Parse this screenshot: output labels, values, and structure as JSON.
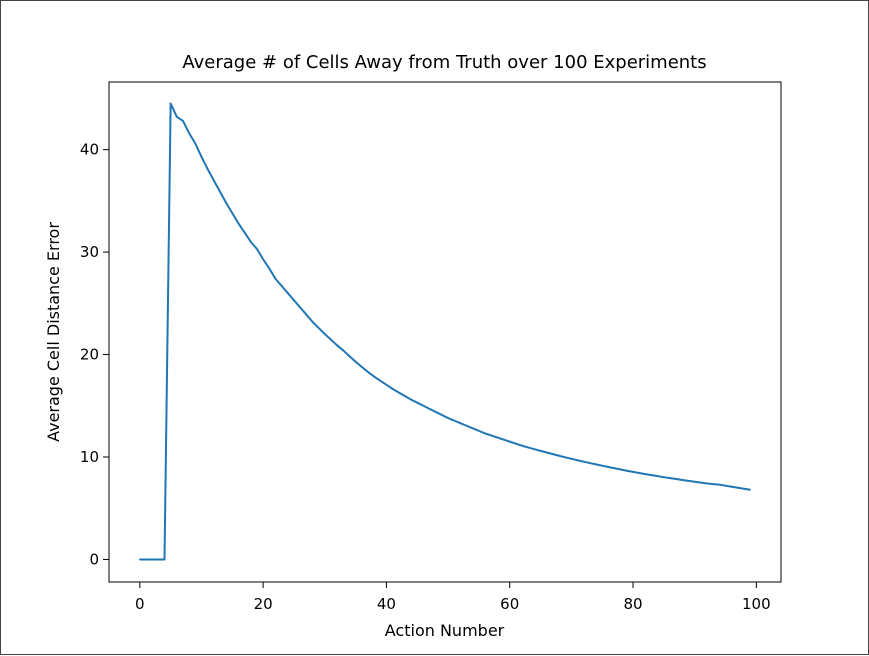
{
  "chart_data": {
    "type": "line",
    "title": "Average # of Cells Away from Truth over 100 Experiments",
    "xlabel": "Action Number",
    "ylabel": "Average Cell Distance Error",
    "xlim": [
      -5,
      104
    ],
    "ylim": [
      -2.2,
      46.6
    ],
    "xticks": [
      0,
      20,
      40,
      60,
      80,
      100
    ],
    "yticks": [
      0,
      10,
      20,
      30,
      40
    ],
    "grid": false,
    "series": [
      {
        "color": "#1f77b4",
        "x": [
          0,
          1,
          2,
          3,
          4,
          5,
          6,
          7,
          8,
          9,
          10,
          11,
          12,
          13,
          14,
          15,
          16,
          17,
          18,
          19,
          20,
          21,
          22,
          23,
          24,
          25,
          26,
          27,
          28,
          29,
          30,
          31,
          32,
          33,
          34,
          35,
          36,
          37,
          38,
          39,
          40,
          41,
          42,
          43,
          44,
          45,
          46,
          47,
          48,
          49,
          50,
          51,
          52,
          53,
          54,
          55,
          56,
          57,
          58,
          59,
          60,
          61,
          62,
          63,
          64,
          65,
          66,
          67,
          68,
          69,
          70,
          71,
          72,
          73,
          74,
          75,
          76,
          77,
          78,
          79,
          80,
          81,
          82,
          83,
          84,
          85,
          86,
          87,
          88,
          89,
          90,
          91,
          92,
          93,
          94,
          95,
          96,
          97,
          98,
          99
        ],
        "values": [
          0,
          0,
          0,
          0,
          0,
          44.5,
          43.2,
          42.8,
          41.6,
          40.6,
          39.3,
          38.1,
          37.0,
          35.9,
          34.8,
          33.8,
          32.8,
          31.9,
          31.0,
          30.3,
          29.3,
          28.4,
          27.4,
          26.7,
          26.0,
          25.3,
          24.6,
          23.9,
          23.2,
          22.6,
          22.0,
          21.45,
          20.9,
          20.4,
          19.85,
          19.3,
          18.8,
          18.3,
          17.85,
          17.45,
          17.05,
          16.65,
          16.3,
          15.95,
          15.6,
          15.3,
          15.0,
          14.7,
          14.4,
          14.1,
          13.8,
          13.55,
          13.3,
          13.05,
          12.8,
          12.55,
          12.3,
          12.1,
          11.9,
          11.7,
          11.5,
          11.3,
          11.1,
          10.93,
          10.76,
          10.6,
          10.44,
          10.28,
          10.12,
          9.97,
          9.82,
          9.68,
          9.54,
          9.41,
          9.28,
          9.15,
          9.02,
          8.9,
          8.78,
          8.66,
          8.55,
          8.44,
          8.33,
          8.23,
          8.13,
          8.03,
          7.94,
          7.85,
          7.76,
          7.67,
          7.58,
          7.5,
          7.42,
          7.35,
          7.3,
          7.2,
          7.1,
          7.0,
          6.9,
          6.8
        ]
      }
    ]
  }
}
